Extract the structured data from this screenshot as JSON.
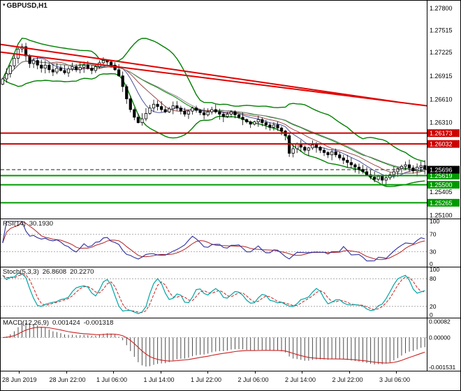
{
  "window": {
    "symbol_label": "GBPUSD,H1"
  },
  "chart_data": {
    "type": "candlestick",
    "symbol": "GBPUSD",
    "timeframe": "H1",
    "title": "GBPUSD,H1",
    "price_axis": {
      "min": 1.2505,
      "max": 1.279,
      "ticks": [
        "1.27800",
        "1.27515",
        "1.27225",
        "1.26915",
        "1.26610",
        "1.26310",
        "1.25405",
        "1.25100"
      ],
      "tick_values": [
        1.278,
        1.27515,
        1.27225,
        1.26915,
        1.2661,
        1.2631,
        1.25405,
        1.251
      ]
    },
    "levels": [
      {
        "price": 1.26173,
        "label": "1.26173",
        "color": "#cc0000",
        "width": 2
      },
      {
        "price": 1.26032,
        "label": "1.26032",
        "color": "#cc0000",
        "width": 2
      },
      {
        "price": 1.25619,
        "label": "1.25619",
        "color": "#009a00",
        "width": 2
      },
      {
        "price": 1.255,
        "label": "1.25500",
        "color": "#009a00",
        "width": 2
      },
      {
        "price": 1.25265,
        "label": "1.25265",
        "color": "#009a00",
        "width": 2
      }
    ],
    "current_price": {
      "value": 1.25696,
      "label": "1.25696",
      "box_color": "#000000"
    },
    "trendlines": [
      {
        "x1": 0.0,
        "p1": 1.2733,
        "x2": 0.93,
        "p2": 1.2658,
        "color": "#e00000",
        "width": 2
      },
      {
        "x1": 0.0,
        "p1": 1.2723,
        "x2": 1.0,
        "p2": 1.2653,
        "color": "#e00000",
        "width": 2
      }
    ],
    "bollinger": {
      "period": 20,
      "deviation": 2,
      "color": "#008000"
    },
    "moving_averages": [
      {
        "period": 8,
        "color": "#39418f"
      },
      {
        "period": 13,
        "color": "#8f3939"
      },
      {
        "period": 21,
        "color": "#808080"
      }
    ],
    "closes": [
      1.2688,
      1.2695,
      1.2705,
      1.2715,
      1.2727,
      1.273,
      1.2718,
      1.2708,
      1.2712,
      1.2706,
      1.2702,
      1.2706,
      1.27,
      1.2697,
      1.2702,
      1.2699,
      1.2696,
      1.2701,
      1.2704,
      1.27,
      1.2703,
      1.2706,
      1.2702,
      1.2699,
      1.2704,
      1.2709,
      1.2712,
      1.271,
      1.2706,
      1.27,
      1.2692,
      1.2678,
      1.2662,
      1.2648,
      1.2638,
      1.2631,
      1.2636,
      1.2643,
      1.265,
      1.2655,
      1.2652,
      1.2648,
      1.2645,
      1.2649,
      1.2653,
      1.265,
      1.2646,
      1.2642,
      1.2646,
      1.265,
      1.2647,
      1.2644,
      1.2641,
      1.2645,
      1.2648,
      1.2645,
      1.2642,
      1.2639,
      1.2642,
      1.2645,
      1.2641,
      1.2638,
      1.2635,
      1.2632,
      1.2629,
      1.2632,
      1.2635,
      1.2631,
      1.2628,
      1.2625,
      1.2628,
      1.2624,
      1.262,
      1.2614,
      1.2591,
      1.2597,
      1.2603,
      1.2599,
      1.2595,
      1.2598,
      1.2602,
      1.2599,
      1.2595,
      1.2592,
      1.2589,
      1.2593,
      1.2589,
      1.2585,
      1.2582,
      1.2579,
      1.2576,
      1.2573,
      1.257,
      1.2567,
      1.2563,
      1.256,
      1.2557,
      1.2561,
      1.2556,
      1.2559,
      1.2563,
      1.2567,
      1.2571,
      1.2574,
      1.2576,
      1.2572,
      1.2568,
      1.2573,
      1.2575,
      1.257
    ],
    "timeline": [
      "28 Jun 2019",
      "28 Jun 22:00",
      "1 Jul 06:00",
      "1 Jul 14:00",
      "1 Jul 22:00",
      "2 Jul 06:00",
      "2 Jul 14:00",
      "2 Jul 22:00",
      "3 Jul 06:00"
    ],
    "rsi": {
      "name": "RSI(14)",
      "value": "30.1930",
      "period": 14,
      "line_color": "#2e2e9e",
      "signal_color": "#b22222",
      "levels": [
        70,
        30
      ],
      "ticks": [
        100,
        70,
        30,
        0
      ]
    },
    "stoch": {
      "name": "Stoch(5,3,3)",
      "value_k": "26.8608",
      "value_d": "20.2270",
      "k_color": "#00a5a5",
      "d_color": "#cc2222",
      "levels": [
        80,
        20
      ],
      "ticks": [
        100,
        80,
        20,
        0
      ]
    },
    "macd": {
      "name": "MACD(12,26,9)",
      "value_main": "0.001424",
      "value_signal": "-0.001318",
      "hist_color": "#4d4d4d",
      "signal_color": "#cc2222",
      "ticks": [
        {
          "v": 0.00082,
          "label": "0.00082"
        },
        {
          "v": 0,
          "label": "0.00000"
        },
        {
          "v": -0.00153,
          "label": "-0.001531"
        }
      ],
      "vmin": -0.00168,
      "vmax": 0.00095
    }
  }
}
